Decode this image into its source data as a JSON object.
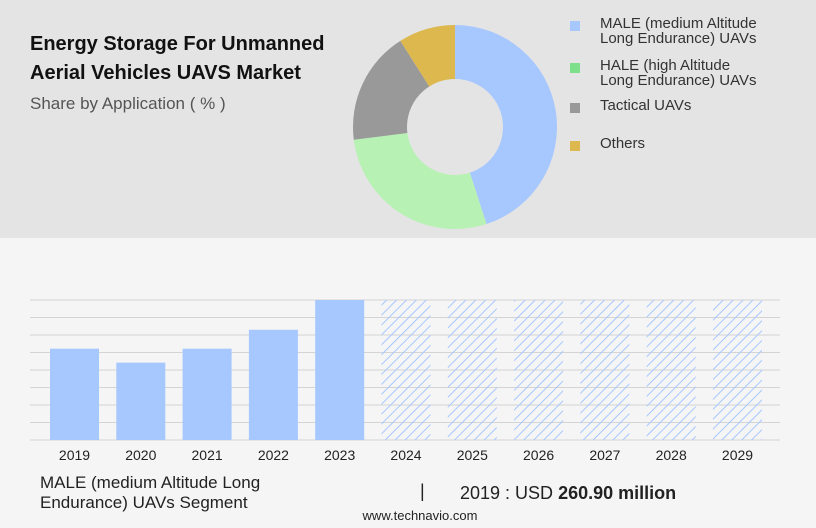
{
  "header": {
    "title": "Energy Storage For Unmanned Aerial Vehicles UAVS Market",
    "subtitle": "Share by Application ( % )"
  },
  "colors": {
    "male": "#a7c7ff",
    "hale": "#b7f2b4",
    "tactical": "#999999",
    "others": "#ddb84e",
    "legend_hale": "#7ee08a",
    "bar": "#a7c7ff",
    "forecast_hatch": "#a7c7ff"
  },
  "legend": {
    "items": [
      {
        "label_lines": [
          "MALE (medium Altitude",
          "Long Endurance) UAVs"
        ],
        "color": "#a7c7ff"
      },
      {
        "label_lines": [
          "HALE (high Altitude",
          "Long Endurance) UAVs"
        ],
        "color": "#7ee08a"
      },
      {
        "label_lines": [
          "Tactical UAVs"
        ],
        "color": "#999999"
      },
      {
        "label_lines": [
          "Others"
        ],
        "color": "#ddb84e"
      }
    ]
  },
  "chart_data": [
    {
      "type": "pie",
      "title": "Share by Application ( % )",
      "labels": [
        "MALE (medium Altitude Long Endurance) UAVs",
        "HALE (high Altitude Long Endurance) UAVs",
        "Tactical UAVs",
        "Others"
      ],
      "values": [
        45,
        28,
        18,
        9
      ],
      "colors": [
        "#a7c7ff",
        "#b7f2b4",
        "#999999",
        "#ddb84e"
      ],
      "donut": true
    },
    {
      "type": "bar",
      "categories": [
        "2019",
        "2020",
        "2021",
        "2022",
        "2023",
        "2024",
        "2025",
        "2026",
        "2027",
        "2028",
        "2029"
      ],
      "values": [
        260.9,
        221,
        260.9,
        315,
        400,
        400,
        400,
        400,
        400,
        400,
        400
      ],
      "forecast": [
        false,
        false,
        false,
        false,
        false,
        true,
        true,
        true,
        true,
        true,
        true
      ],
      "ylim": [
        0,
        400
      ],
      "grid": true
    }
  ],
  "footer": {
    "segment_label": "MALE (medium Altitude Long Endurance) UAVs Segment",
    "separator": "|",
    "value_prefix": "2019 : USD",
    "value_bold": "260.90 million",
    "source": "www.technavio.com"
  }
}
